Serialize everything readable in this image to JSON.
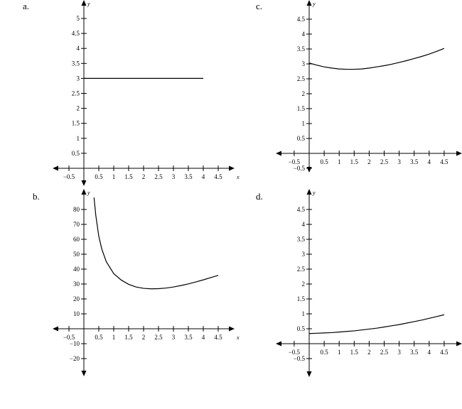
{
  "chart_data": [
    {
      "id": "a",
      "label": "a.",
      "type": "line",
      "xlabel": "x",
      "ylabel": "y",
      "xlim": [
        -0.5,
        4.5
      ],
      "ylim": [
        0,
        5
      ],
      "x_ticks": [
        -0.5,
        0.5,
        1,
        1.5,
        2,
        2.5,
        3,
        3.5,
        4,
        4.5
      ],
      "x_tick_labels": [
        "−0.5",
        "0.5",
        "1",
        "1.5",
        "2",
        "2.5",
        "3",
        "3.5",
        "4",
        "4.5"
      ],
      "y_ticks": [
        0.5,
        1,
        1.5,
        2,
        2.5,
        3,
        3.5,
        4,
        4.5,
        5
      ],
      "y_tick_labels": [
        "0.5",
        "1",
        "1.5",
        "2",
        "2.5",
        "3",
        "3.5",
        "4",
        "4.5",
        "5"
      ],
      "series": [
        {
          "x": [
            0,
            0.5,
            1,
            1.5,
            2,
            2.5,
            3,
            3.5,
            4
          ],
          "y": [
            3,
            3,
            3,
            3,
            3,
            3,
            3,
            3,
            3
          ]
        }
      ]
    },
    {
      "id": "b",
      "label": "b.",
      "type": "line",
      "xlabel": "x",
      "ylabel": "y",
      "xlim": [
        -0.5,
        4.5
      ],
      "ylim": [
        -20,
        80
      ],
      "x_ticks": [
        -0.5,
        0.5,
        1,
        1.5,
        2,
        2.5,
        3,
        3.5,
        4,
        4.5
      ],
      "x_tick_labels": [
        "−0.5",
        "0.5",
        "1",
        "1.5",
        "2",
        "2.5",
        "3",
        "3.5",
        "4",
        "4.5"
      ],
      "y_ticks": [
        -20,
        -10,
        10,
        20,
        30,
        40,
        50,
        60,
        70,
        80
      ],
      "y_tick_labels": [
        "−20",
        "−10",
        "10",
        "20",
        "30",
        "40",
        "50",
        "60",
        "70",
        "80"
      ],
      "series": [
        {
          "x": [
            0.34,
            0.4,
            0.5,
            0.6,
            0.75,
            1,
            1.25,
            1.5,
            1.75,
            2,
            2.25,
            2.5,
            2.75,
            3,
            3.25,
            3.5,
            3.75,
            4,
            4.25,
            4.5
          ],
          "y": [
            88,
            76,
            62,
            53.5,
            45,
            37,
            32.7,
            29.8,
            28,
            27.1,
            26.8,
            26.9,
            27.3,
            28,
            29,
            30.1,
            31.4,
            32.8,
            34.3,
            35.8
          ]
        }
      ]
    },
    {
      "id": "c",
      "label": "c.",
      "type": "line",
      "xlabel": "x",
      "ylabel": "y",
      "xlim": [
        -0.5,
        4.5
      ],
      "ylim": [
        -0.5,
        4.5
      ],
      "x_ticks": [
        -0.5,
        0.5,
        1,
        1.5,
        2,
        2.5,
        3,
        3.5,
        4,
        4.5
      ],
      "x_tick_labels": [
        "−0.5",
        "0.5",
        "1",
        "1.5",
        "2",
        "2.5",
        "3",
        "3.5",
        "4",
        "4.5"
      ],
      "y_ticks": [
        -0.5,
        0.5,
        1,
        1.5,
        2,
        2.5,
        3,
        3.5,
        4,
        4.5
      ],
      "y_tick_labels": [
        "−0.5",
        "0.5",
        "1",
        "1.5",
        "2",
        "2.5",
        "3",
        "3.5",
        "4",
        "4.5"
      ],
      "series": [
        {
          "x": [
            0,
            0.25,
            0.5,
            0.75,
            1,
            1.25,
            1.5,
            1.75,
            2,
            2.25,
            2.5,
            2.75,
            3,
            3.25,
            3.5,
            3.75,
            4,
            4.25,
            4.5
          ],
          "y": [
            3.03,
            2.96,
            2.9,
            2.86,
            2.83,
            2.82,
            2.82,
            2.83,
            2.86,
            2.9,
            2.94,
            2.99,
            3.05,
            3.11,
            3.18,
            3.25,
            3.33,
            3.42,
            3.52
          ]
        }
      ]
    },
    {
      "id": "d",
      "label": "d.",
      "type": "line",
      "xlabel": "x",
      "ylabel": "y",
      "xlim": [
        -0.5,
        4.5
      ],
      "ylim": [
        -0.5,
        4.5
      ],
      "x_ticks": [
        -0.5,
        0.5,
        1,
        1.5,
        2,
        2.5,
        3,
        3.5,
        4,
        4.5
      ],
      "x_tick_labels": [
        "−0.5",
        "0.5",
        "1",
        "1.5",
        "2",
        "2.5",
        "3",
        "3.5",
        "4",
        "4.5"
      ],
      "y_ticks": [
        -0.5,
        0.5,
        1,
        1.5,
        2,
        2.5,
        3,
        3.5,
        4,
        4.5
      ],
      "y_tick_labels": [
        "−0.5",
        "0.5",
        "1",
        "1.5",
        "2",
        "2.5",
        "3",
        "3.5",
        "4",
        "4.5"
      ],
      "series": [
        {
          "x": [
            0,
            0.25,
            0.5,
            0.75,
            1,
            1.25,
            1.5,
            1.75,
            2,
            2.25,
            2.5,
            2.75,
            3,
            3.25,
            3.5,
            3.75,
            4,
            4.25,
            4.5
          ],
          "y": [
            0.34,
            0.35,
            0.36,
            0.37,
            0.39,
            0.41,
            0.43,
            0.46,
            0.49,
            0.52,
            0.56,
            0.6,
            0.64,
            0.69,
            0.74,
            0.79,
            0.85,
            0.91,
            0.97
          ]
        }
      ]
    }
  ]
}
